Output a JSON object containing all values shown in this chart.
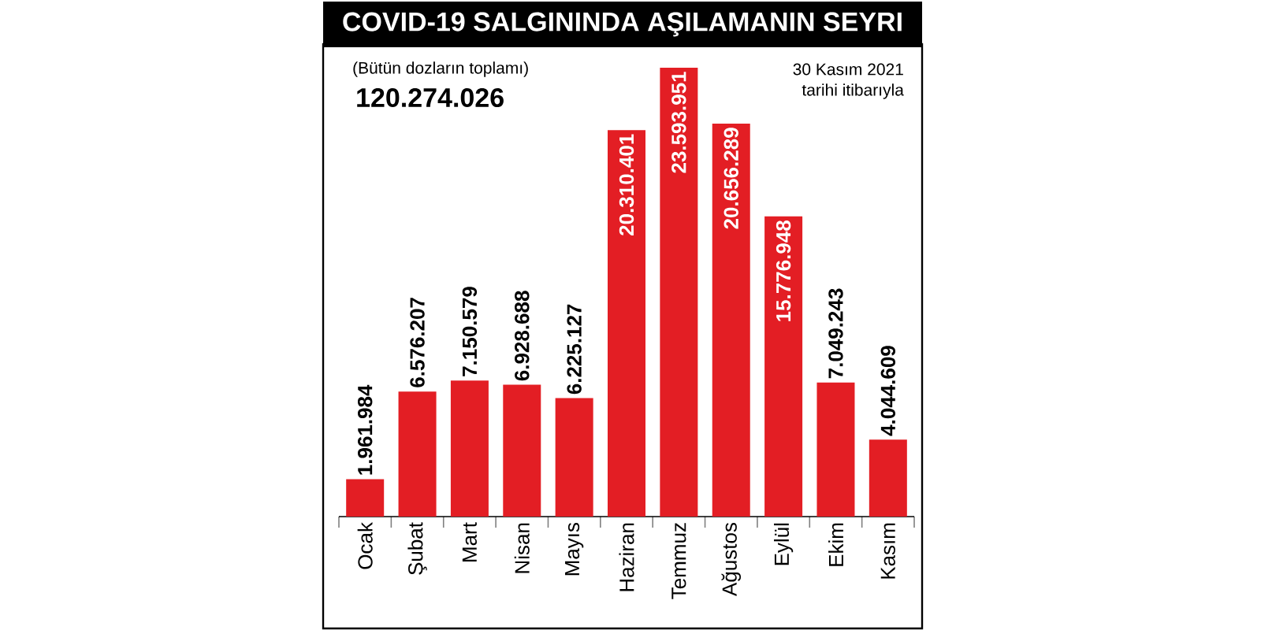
{
  "chart_data": {
    "type": "bar",
    "title": "COVID-19 SALGININDA AŞILAMANIN SEYRI",
    "categories": [
      "Ocak",
      "Şubat",
      "Mart",
      "Nisan",
      "Mayıs",
      "Haziran",
      "Temmuz",
      "Ağustos",
      "Eylül",
      "Ekim",
      "Kasım"
    ],
    "values": [
      1961984,
      6576207,
      7150579,
      6928688,
      6225127,
      20310401,
      23593951,
      20656289,
      15776948,
      7049243,
      4044609
    ],
    "value_labels": [
      "1.961.984",
      "6.576.207",
      "7.150.579",
      "6.928.688",
      "6.225.127",
      "20.310.401",
      "23.593.951",
      "20.656.289",
      "15.776.948",
      "7.049.243",
      "4.044.609"
    ],
    "color": "#e31e24",
    "annotations": [
      "(Bütün dozların toplamı)",
      "120.274.026",
      "30 Kasım 2021",
      "tarihi itibarıyla"
    ]
  }
}
